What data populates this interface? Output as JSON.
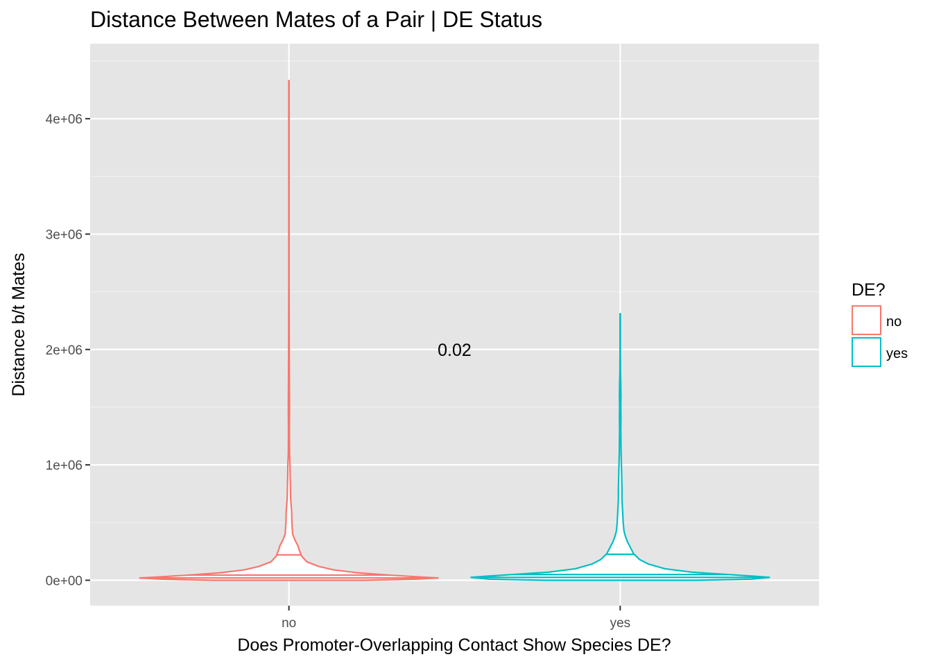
{
  "chart_data": {
    "type": "violin",
    "title": "Distance Between Mates of a Pair | DE Status",
    "xlabel": "Does Promoter-Overlapping Contact Show Species DE?",
    "ylabel": "Distance b/t Mates",
    "categories": [
      "no",
      "yes"
    ],
    "ylim": [
      -220000,
      4650000
    ],
    "yticks": [
      0,
      1000000,
      2000000,
      3000000,
      4000000
    ],
    "ytick_labels": [
      "0e+00",
      "1e+06",
      "2e+06",
      "3e+06",
      "4e+06"
    ],
    "grid": true,
    "draw_quantiles": [
      0.25,
      0.5,
      0.75
    ],
    "legend": {
      "title": "DE?",
      "position": "right",
      "entries": [
        {
          "label": "no",
          "color": "#F8766D"
        },
        {
          "label": "yes",
          "color": "#00BFC4"
        }
      ]
    },
    "annotation": {
      "text": "0.02",
      "x": 1.5,
      "y": 2000000
    },
    "series": [
      {
        "name": "no",
        "color": "#F8766D",
        "quantiles": [
          20000,
          45000,
          220000
        ],
        "max": 4330000,
        "density": [
          [
            0,
            0.5
          ],
          [
            10000,
            0.86
          ],
          [
            20000,
            1.0
          ],
          [
            30000,
            0.86
          ],
          [
            45000,
            0.67
          ],
          [
            65000,
            0.46
          ],
          [
            90000,
            0.3
          ],
          [
            120000,
            0.2
          ],
          [
            160000,
            0.12
          ],
          [
            210000,
            0.085
          ],
          [
            260000,
            0.07
          ],
          [
            300000,
            0.06
          ],
          [
            350000,
            0.04
          ],
          [
            400000,
            0.025
          ],
          [
            500000,
            0.02
          ],
          [
            600000,
            0.018
          ],
          [
            700000,
            0.012
          ],
          [
            800000,
            0.01
          ],
          [
            900000,
            0.008
          ],
          [
            1000000,
            0.007
          ],
          [
            1100000,
            0.004
          ],
          [
            1300000,
            0.003
          ],
          [
            1500000,
            0.004
          ],
          [
            1700000,
            0.003
          ],
          [
            2000000,
            0.002
          ],
          [
            2500000,
            0.001
          ],
          [
            3000000,
            0.001
          ],
          [
            3500000,
            0.001
          ],
          [
            4000000,
            0.001
          ],
          [
            4330000,
            0.001
          ]
        ]
      },
      {
        "name": "yes",
        "color": "#00BFC4",
        "quantiles": [
          25000,
          50000,
          225000
        ],
        "max": 2310000,
        "density": [
          [
            0,
            0.5
          ],
          [
            10000,
            0.88
          ],
          [
            25000,
            1.0
          ],
          [
            35000,
            0.9
          ],
          [
            50000,
            0.72
          ],
          [
            70000,
            0.48
          ],
          [
            100000,
            0.3
          ],
          [
            140000,
            0.19
          ],
          [
            180000,
            0.13
          ],
          [
            230000,
            0.09
          ],
          [
            280000,
            0.07
          ],
          [
            330000,
            0.05
          ],
          [
            380000,
            0.035
          ],
          [
            430000,
            0.025
          ],
          [
            500000,
            0.02
          ],
          [
            600000,
            0.016
          ],
          [
            700000,
            0.012
          ],
          [
            800000,
            0.012
          ],
          [
            900000,
            0.01
          ],
          [
            1000000,
            0.008
          ],
          [
            1100000,
            0.006
          ],
          [
            1200000,
            0.005
          ],
          [
            1300000,
            0.004
          ],
          [
            1400000,
            0.005
          ],
          [
            1500000,
            0.004
          ],
          [
            1600000,
            0.005
          ],
          [
            1700000,
            0.004
          ],
          [
            1800000,
            0.002
          ],
          [
            2000000,
            0.001
          ],
          [
            2310000,
            0.001
          ]
        ]
      }
    ]
  }
}
